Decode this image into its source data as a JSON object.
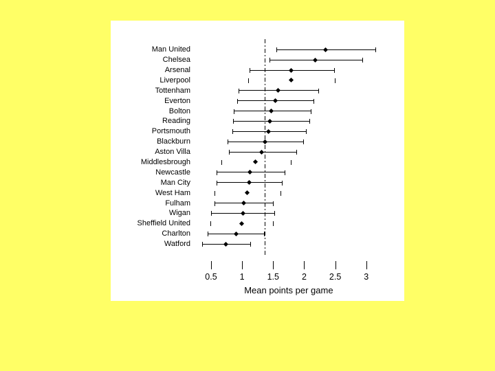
{
  "page": {
    "background_color": "#FFFF66",
    "panel_background_color": "#FFFFFF",
    "ink_color": "#000000"
  },
  "chart_data": {
    "type": "scatter",
    "subtype": "dot-with-error-bars",
    "orientation": "horizontal",
    "title": "",
    "xlabel": "Mean points per game",
    "ylabel": "",
    "x_ticks": [
      0.5,
      1,
      1.5,
      2,
      2.5,
      3
    ],
    "xlim": [
      0.3,
      3.2
    ],
    "grid": false,
    "legend": false,
    "reference_line": {
      "value": 1.37,
      "style": "dash-dot",
      "color": "#000000"
    },
    "points": [
      {
        "team": "Man United",
        "mean": 2.34,
        "lo": 1.55,
        "hi": 3.15,
        "line_visible": true
      },
      {
        "team": "Chelsea",
        "mean": 2.18,
        "lo": 1.44,
        "hi": 2.94,
        "line_visible": true
      },
      {
        "team": "Arsenal",
        "mean": 1.79,
        "lo": 1.12,
        "hi": 2.48,
        "line_visible": true
      },
      {
        "team": "Liverpool",
        "mean": 1.79,
        "lo": 1.1,
        "hi": 2.49,
        "line_visible": false
      },
      {
        "team": "Tottenham",
        "mean": 1.58,
        "lo": 0.94,
        "hi": 2.23,
        "line_visible": true
      },
      {
        "team": "Everton",
        "mean": 1.53,
        "lo": 0.92,
        "hi": 2.15,
        "line_visible": true
      },
      {
        "team": "Bolton",
        "mean": 1.47,
        "lo": 0.86,
        "hi": 2.11,
        "line_visible": true
      },
      {
        "team": "Reading",
        "mean": 1.45,
        "lo": 0.85,
        "hi": 2.08,
        "line_visible": true
      },
      {
        "team": "Portsmouth",
        "mean": 1.42,
        "lo": 0.84,
        "hi": 2.03,
        "line_visible": true
      },
      {
        "team": "Blackburn",
        "mean": 1.37,
        "lo": 0.77,
        "hi": 1.98,
        "line_visible": true
      },
      {
        "team": "Aston Villa",
        "mean": 1.31,
        "lo": 0.79,
        "hi": 1.87,
        "line_visible": true
      },
      {
        "team": "Middlesbrough",
        "mean": 1.21,
        "lo": 0.67,
        "hi": 1.78,
        "line_visible": false
      },
      {
        "team": "Newcastle",
        "mean": 1.13,
        "lo": 0.59,
        "hi": 1.68,
        "line_visible": true
      },
      {
        "team": "Man City",
        "mean": 1.11,
        "lo": 0.59,
        "hi": 1.64,
        "line_visible": true
      },
      {
        "team": "West Ham",
        "mean": 1.08,
        "lo": 0.55,
        "hi": 1.62,
        "line_visible": false
      },
      {
        "team": "Fulham",
        "mean": 1.03,
        "lo": 0.56,
        "hi": 1.5,
        "line_visible": true
      },
      {
        "team": "Wigan",
        "mean": 1.01,
        "lo": 0.5,
        "hi": 1.52,
        "line_visible": true
      },
      {
        "team": "Sheffield United",
        "mean": 0.99,
        "lo": 0.49,
        "hi": 1.5,
        "line_visible": false
      },
      {
        "team": "Charlton",
        "mean": 0.9,
        "lo": 0.44,
        "hi": 1.35,
        "line_visible": true
      },
      {
        "team": "Watford",
        "mean": 0.74,
        "lo": 0.36,
        "hi": 1.13,
        "line_visible": true
      }
    ]
  }
}
